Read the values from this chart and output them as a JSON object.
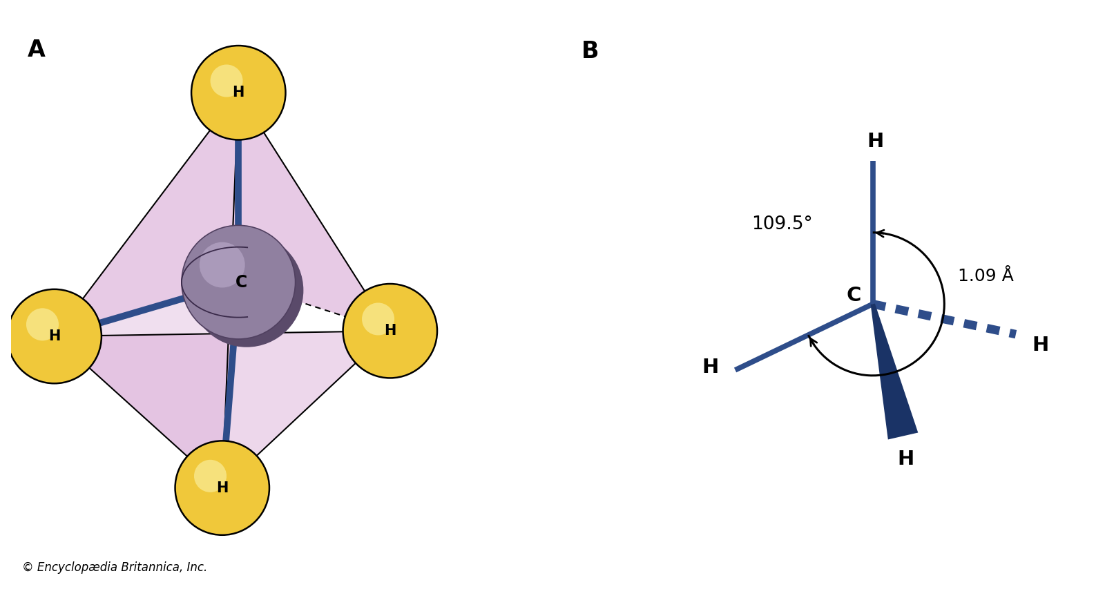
{
  "background_color": "#ffffff",
  "label_A": "A",
  "label_B": "B",
  "copyright": "© Encyclopædia Britannica, Inc.",
  "bond_color": "#2e4d8a",
  "bond_color_dark": "#1a3366",
  "hydrogen_color": "#f0c83a",
  "face_color": "#d4a0d0",
  "face_alpha": 0.55,
  "angle_label": "109.5°",
  "dist_label": "1.09 Å"
}
